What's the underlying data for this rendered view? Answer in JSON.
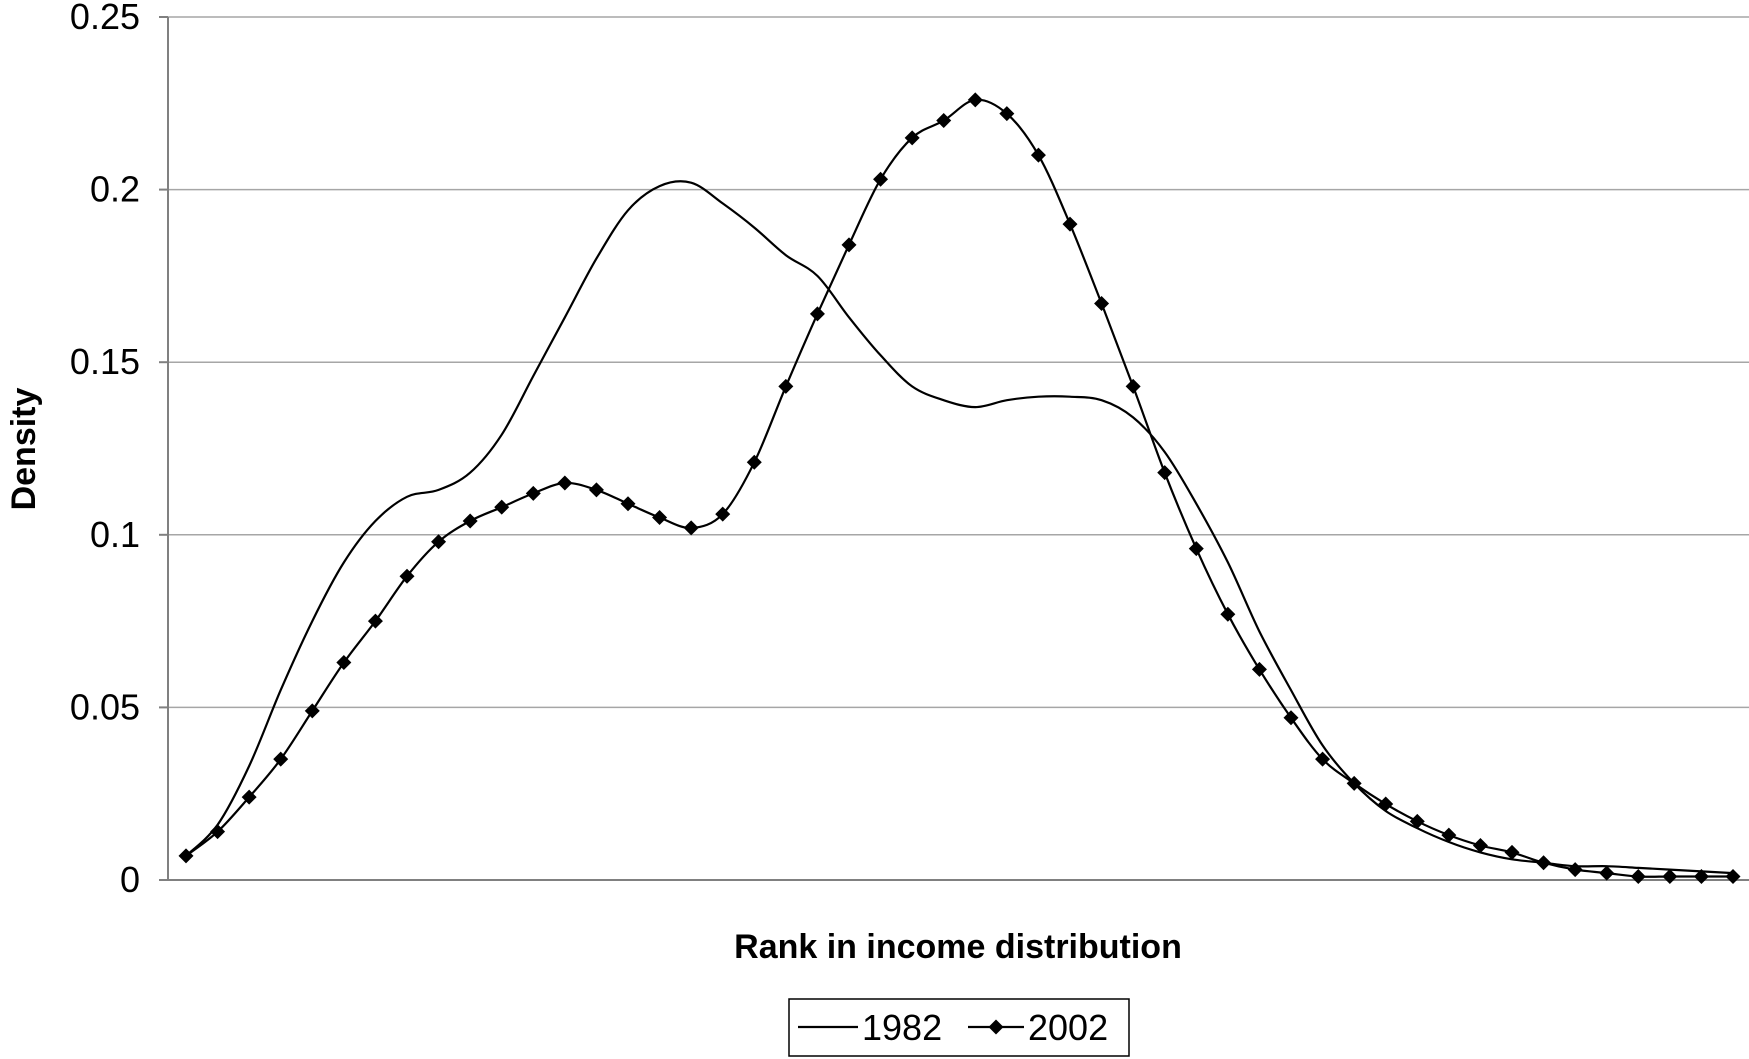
{
  "chart_data": {
    "type": "line",
    "xlabel": "Rank in income distribution",
    "ylabel": "Density",
    "ylim": [
      0,
      0.25
    ],
    "yticks": [
      "0",
      "0.05",
      "0.1",
      "0.15",
      "0.2",
      "0.25"
    ],
    "grid": true,
    "legend_position": "bottom-center",
    "series": [
      {
        "name": "1982",
        "marker": "none",
        "color": "#000000",
        "values": [
          0.007,
          0.016,
          0.033,
          0.055,
          0.075,
          0.092,
          0.104,
          0.111,
          0.113,
          0.118,
          0.129,
          0.146,
          0.163,
          0.18,
          0.194,
          0.201,
          0.202,
          0.196,
          0.189,
          0.181,
          0.175,
          0.163,
          0.152,
          0.143,
          0.139,
          0.137,
          0.139,
          0.14,
          0.14,
          0.139,
          0.134,
          0.124,
          0.109,
          0.092,
          0.072,
          0.055,
          0.039,
          0.028,
          0.02,
          0.015,
          0.011,
          0.008,
          0.006,
          0.005,
          0.004,
          0.004,
          0.0035,
          0.003,
          0.0025,
          0.002
        ]
      },
      {
        "name": "2002",
        "marker": "diamond",
        "color": "#000000",
        "values": [
          0.007,
          0.014,
          0.024,
          0.035,
          0.049,
          0.063,
          0.075,
          0.088,
          0.098,
          0.104,
          0.108,
          0.112,
          0.115,
          0.113,
          0.109,
          0.105,
          0.102,
          0.106,
          0.121,
          0.143,
          0.164,
          0.184,
          0.203,
          0.215,
          0.22,
          0.226,
          0.222,
          0.21,
          0.19,
          0.167,
          0.143,
          0.118,
          0.096,
          0.077,
          0.061,
          0.047,
          0.035,
          0.028,
          0.022,
          0.017,
          0.013,
          0.01,
          0.008,
          0.005,
          0.003,
          0.002,
          0.001,
          0.001,
          0.001,
          0.001
        ]
      }
    ]
  }
}
